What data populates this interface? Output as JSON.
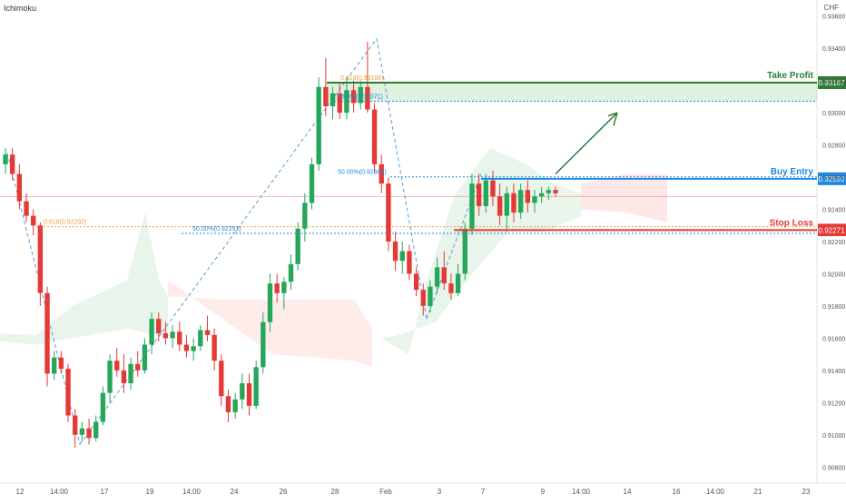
{
  "header": {
    "indicator": "Ichimoku",
    "currency": "CHF"
  },
  "chart_data": {
    "type": "candlestick",
    "y_range": [
      0.907,
      0.937
    ],
    "y_ticks": [
      "0.93600",
      "0.93400",
      "0.93200",
      "0.93000",
      "0.92800",
      "0.92600",
      "0.92400",
      "0.92200",
      "0.92000",
      "0.91800",
      "0.91600",
      "0.91400",
      "0.91200",
      "0.91000",
      "0.90800"
    ],
    "x_ticks": [
      "12",
      "14:00",
      "17",
      "19",
      "14:00",
      "24",
      "26",
      "28",
      "Feb",
      "3",
      "7",
      "9",
      "14:00",
      "14",
      "16",
      "14:00",
      "21",
      "23"
    ],
    "levels": [
      {
        "label": "Take Profit",
        "value": 0.93187,
        "price": "0.93187",
        "color": "#2e7d32"
      },
      {
        "label": "Buy Entry",
        "value": 0.9259,
        "price": "0.92590",
        "color": "#1e88e5"
      },
      {
        "label": "Stop Loss",
        "value": 0.92271,
        "price": "0.92271",
        "color": "#e53935"
      }
    ],
    "current_price": {
      "price": "0.92200",
      "value": 0.922
    },
    "fib_labels": [
      {
        "text": "0.618(0.93188)",
        "value": 0.93188,
        "color": "#e6a23c"
      },
      {
        "text": "78.6%(0.93071)",
        "value": 0.93071,
        "color": "#1e88e5"
      },
      {
        "text": "50.00%(0.92602)",
        "value": 0.92602,
        "color": "#1e88e5"
      },
      {
        "text": "0.618(0.92292)",
        "value": 0.92292,
        "color": "#e6a23c"
      },
      {
        "text": "50.00%(0.92251)",
        "value": 0.92251,
        "color": "#1e88e5"
      }
    ],
    "candles": [
      {
        "o": 0.9268,
        "h": 0.9278,
        "l": 0.9262,
        "c": 0.9274
      },
      {
        "o": 0.9274,
        "h": 0.9278,
        "l": 0.9258,
        "c": 0.9262
      },
      {
        "o": 0.9262,
        "h": 0.9268,
        "l": 0.924,
        "c": 0.9245
      },
      {
        "o": 0.9245,
        "h": 0.925,
        "l": 0.9232,
        "c": 0.9236
      },
      {
        "o": 0.9236,
        "h": 0.924,
        "l": 0.9224,
        "c": 0.923
      },
      {
        "o": 0.923,
        "h": 0.9232,
        "l": 0.918,
        "c": 0.9188
      },
      {
        "o": 0.9188,
        "h": 0.9192,
        "l": 0.913,
        "c": 0.9138
      },
      {
        "o": 0.9138,
        "h": 0.9152,
        "l": 0.9134,
        "c": 0.9148
      },
      {
        "o": 0.9148,
        "h": 0.9152,
        "l": 0.9138,
        "c": 0.9141
      },
      {
        "o": 0.9141,
        "h": 0.9144,
        "l": 0.9108,
        "c": 0.9112
      },
      {
        "o": 0.9112,
        "h": 0.9116,
        "l": 0.9092,
        "c": 0.91
      },
      {
        "o": 0.91,
        "h": 0.9108,
        "l": 0.9096,
        "c": 0.9104
      },
      {
        "o": 0.9104,
        "h": 0.911,
        "l": 0.9094,
        "c": 0.9098
      },
      {
        "o": 0.9098,
        "h": 0.9112,
        "l": 0.9096,
        "c": 0.9108
      },
      {
        "o": 0.9108,
        "h": 0.913,
        "l": 0.9106,
        "c": 0.9126
      },
      {
        "o": 0.9126,
        "h": 0.915,
        "l": 0.912,
        "c": 0.9146
      },
      {
        "o": 0.9146,
        "h": 0.9154,
        "l": 0.9136,
        "c": 0.914
      },
      {
        "o": 0.914,
        "h": 0.915,
        "l": 0.9126,
        "c": 0.9132
      },
      {
        "o": 0.9132,
        "h": 0.9148,
        "l": 0.9128,
        "c": 0.9144
      },
      {
        "o": 0.9144,
        "h": 0.9152,
        "l": 0.9136,
        "c": 0.914
      },
      {
        "o": 0.914,
        "h": 0.916,
        "l": 0.9138,
        "c": 0.9156
      },
      {
        "o": 0.9156,
        "h": 0.9176,
        "l": 0.915,
        "c": 0.9172
      },
      {
        "o": 0.9172,
        "h": 0.9176,
        "l": 0.9158,
        "c": 0.9163
      },
      {
        "o": 0.9163,
        "h": 0.917,
        "l": 0.9156,
        "c": 0.916
      },
      {
        "o": 0.916,
        "h": 0.9168,
        "l": 0.9154,
        "c": 0.9164
      },
      {
        "o": 0.9164,
        "h": 0.917,
        "l": 0.9152,
        "c": 0.9156
      },
      {
        "o": 0.9156,
        "h": 0.9162,
        "l": 0.9148,
        "c": 0.9152
      },
      {
        "o": 0.9152,
        "h": 0.916,
        "l": 0.9146,
        "c": 0.9155
      },
      {
        "o": 0.9155,
        "h": 0.9168,
        "l": 0.9152,
        "c": 0.9165
      },
      {
        "o": 0.9165,
        "h": 0.9174,
        "l": 0.9158,
        "c": 0.9162
      },
      {
        "o": 0.9162,
        "h": 0.9166,
        "l": 0.914,
        "c": 0.9146
      },
      {
        "o": 0.9146,
        "h": 0.915,
        "l": 0.9118,
        "c": 0.9124
      },
      {
        "o": 0.9124,
        "h": 0.9128,
        "l": 0.9108,
        "c": 0.9114
      },
      {
        "o": 0.9114,
        "h": 0.9126,
        "l": 0.911,
        "c": 0.9122
      },
      {
        "o": 0.9122,
        "h": 0.9138,
        "l": 0.9116,
        "c": 0.9132
      },
      {
        "o": 0.9132,
        "h": 0.9138,
        "l": 0.9112,
        "c": 0.9118
      },
      {
        "o": 0.9118,
        "h": 0.9146,
        "l": 0.9116,
        "c": 0.9142
      },
      {
        "o": 0.9142,
        "h": 0.9176,
        "l": 0.9138,
        "c": 0.917
      },
      {
        "o": 0.917,
        "h": 0.92,
        "l": 0.9164,
        "c": 0.9194
      },
      {
        "o": 0.9194,
        "h": 0.92,
        "l": 0.9182,
        "c": 0.9188
      },
      {
        "o": 0.9188,
        "h": 0.9198,
        "l": 0.9178,
        "c": 0.9195
      },
      {
        "o": 0.9195,
        "h": 0.9212,
        "l": 0.919,
        "c": 0.9206
      },
      {
        "o": 0.9206,
        "h": 0.9232,
        "l": 0.9202,
        "c": 0.9228
      },
      {
        "o": 0.9228,
        "h": 0.925,
        "l": 0.922,
        "c": 0.9244
      },
      {
        "o": 0.9244,
        "h": 0.9272,
        "l": 0.924,
        "c": 0.9268
      },
      {
        "o": 0.9268,
        "h": 0.9322,
        "l": 0.9264,
        "c": 0.9316
      },
      {
        "o": 0.9316,
        "h": 0.9334,
        "l": 0.9298,
        "c": 0.9304
      },
      {
        "o": 0.9304,
        "h": 0.9316,
        "l": 0.9296,
        "c": 0.9312
      },
      {
        "o": 0.9312,
        "h": 0.9318,
        "l": 0.9296,
        "c": 0.93
      },
      {
        "o": 0.93,
        "h": 0.9322,
        "l": 0.9296,
        "c": 0.9314
      },
      {
        "o": 0.9314,
        "h": 0.932,
        "l": 0.93,
        "c": 0.9306
      },
      {
        "o": 0.9306,
        "h": 0.932,
        "l": 0.9302,
        "c": 0.9316
      },
      {
        "o": 0.9316,
        "h": 0.9344,
        "l": 0.93,
        "c": 0.9302
      },
      {
        "o": 0.9302,
        "h": 0.9306,
        "l": 0.9262,
        "c": 0.9268
      },
      {
        "o": 0.9268,
        "h": 0.9274,
        "l": 0.925,
        "c": 0.9256
      },
      {
        "o": 0.9256,
        "h": 0.926,
        "l": 0.9214,
        "c": 0.922
      },
      {
        "o": 0.922,
        "h": 0.9226,
        "l": 0.9202,
        "c": 0.9208
      },
      {
        "o": 0.9208,
        "h": 0.922,
        "l": 0.92,
        "c": 0.9214
      },
      {
        "o": 0.9214,
        "h": 0.9218,
        "l": 0.9196,
        "c": 0.92
      },
      {
        "o": 0.92,
        "h": 0.9204,
        "l": 0.9186,
        "c": 0.919
      },
      {
        "o": 0.919,
        "h": 0.9194,
        "l": 0.9174,
        "c": 0.918
      },
      {
        "o": 0.918,
        "h": 0.9196,
        "l": 0.9176,
        "c": 0.9192
      },
      {
        "o": 0.9192,
        "h": 0.921,
        "l": 0.9188,
        "c": 0.9204
      },
      {
        "o": 0.9204,
        "h": 0.9214,
        "l": 0.919,
        "c": 0.9194
      },
      {
        "o": 0.9194,
        "h": 0.92,
        "l": 0.9184,
        "c": 0.9188
      },
      {
        "o": 0.9188,
        "h": 0.9206,
        "l": 0.9186,
        "c": 0.92
      },
      {
        "o": 0.92,
        "h": 0.9232,
        "l": 0.9196,
        "c": 0.9228
      },
      {
        "o": 0.9228,
        "h": 0.9262,
        "l": 0.9224,
        "c": 0.9256
      },
      {
        "o": 0.9256,
        "h": 0.9262,
        "l": 0.9236,
        "c": 0.9242
      },
      {
        "o": 0.9242,
        "h": 0.9262,
        "l": 0.9238,
        "c": 0.9258
      },
      {
        "o": 0.9258,
        "h": 0.9264,
        "l": 0.9242,
        "c": 0.9248
      },
      {
        "o": 0.9248,
        "h": 0.9256,
        "l": 0.923,
        "c": 0.9236
      },
      {
        "o": 0.9236,
        "h": 0.9254,
        "l": 0.9226,
        "c": 0.925
      },
      {
        "o": 0.925,
        "h": 0.9256,
        "l": 0.9232,
        "c": 0.9238
      },
      {
        "o": 0.9238,
        "h": 0.9256,
        "l": 0.9234,
        "c": 0.9252
      },
      {
        "o": 0.9252,
        "h": 0.9258,
        "l": 0.9238,
        "c": 0.9244
      },
      {
        "o": 0.9244,
        "h": 0.9252,
        "l": 0.9238,
        "c": 0.9248
      },
      {
        "o": 0.9248,
        "h": 0.9254,
        "l": 0.9244,
        "c": 0.925
      },
      {
        "o": 0.925,
        "h": 0.9254,
        "l": 0.9246,
        "c": 0.9252
      },
      {
        "o": 0.9252,
        "h": 0.9254,
        "l": 0.9248,
        "c": 0.925
      }
    ]
  }
}
